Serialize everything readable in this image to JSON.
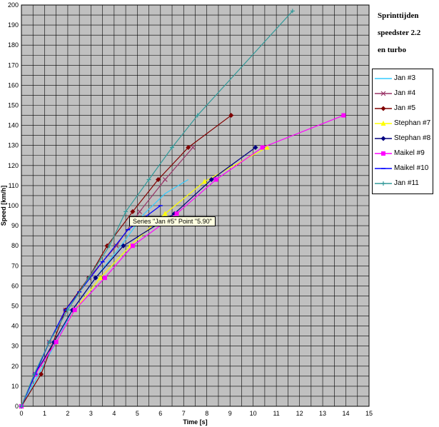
{
  "title_lines": [
    "Sprinttijden",
    "speedster 2.2",
    "en turbo"
  ],
  "tooltip": "Series \"Jan #5\" Point \"5.90\"",
  "chart_data": {
    "type": "line",
    "xlabel": "Time [s]",
    "ylabel": "Speed [km/h]",
    "xlim": [
      0,
      15
    ],
    "ylim": [
      0,
      200
    ],
    "x_ticks": [
      0,
      1,
      2,
      3,
      4,
      5,
      6,
      7,
      8,
      9,
      10,
      11,
      12,
      13,
      14,
      15
    ],
    "y_ticks": [
      0,
      10,
      20,
      30,
      40,
      50,
      60,
      70,
      80,
      90,
      100,
      110,
      120,
      130,
      140,
      150,
      160,
      170,
      180,
      190,
      200
    ],
    "grid": true,
    "legend_position": "right",
    "series": [
      {
        "name": "Jan #3",
        "color": "#33ccff",
        "marker": "none",
        "x": [
          0,
          1.5,
          2.2,
          3.2,
          4.3,
          5.3,
          6.2,
          7.2
        ],
        "y": [
          0,
          32,
          48,
          64,
          80,
          96,
          106,
          113
        ]
      },
      {
        "name": "Jan #4",
        "color": "#993366",
        "marker": "x",
        "x": [
          0,
          1.2,
          1.9,
          2.9,
          4.1,
          5.1,
          6.2,
          7.4
        ],
        "y": [
          0,
          32,
          48,
          64,
          80,
          97,
          113,
          129
        ]
      },
      {
        "name": "Jan #5",
        "color": "#800000",
        "marker": "diamond",
        "x": [
          0,
          0.85,
          1.9,
          2.9,
          3.7,
          4.8,
          5.9,
          7.2,
          9.05
        ],
        "y": [
          0,
          16,
          48,
          64,
          80,
          97,
          113,
          129,
          145
        ]
      },
      {
        "name": "Stephan #7",
        "color": "#ffff00",
        "marker": "triangle",
        "x": [
          0,
          0.6,
          1.5,
          2.3,
          3.4,
          4.7,
          6.2,
          7.9,
          10.6
        ],
        "y": [
          0,
          16,
          32,
          48,
          64,
          80,
          96,
          112,
          129
        ]
      },
      {
        "name": "Stephan #8",
        "color": "#000080",
        "marker": "diamond",
        "x": [
          0,
          0.6,
          1.4,
          2.2,
          3.2,
          4.4,
          6.6,
          8.2,
          10.1
        ],
        "y": [
          0,
          16,
          32,
          48,
          64,
          80,
          96,
          113,
          129
        ]
      },
      {
        "name": "Maikel #9",
        "color": "#ff00ff",
        "marker": "square",
        "x": [
          0,
          0.6,
          1.5,
          2.3,
          3.6,
          4.8,
          6.7,
          8.4,
          10.4,
          13.9
        ],
        "y": [
          0,
          16,
          32,
          48,
          64,
          80,
          96,
          113,
          129,
          145
        ]
      },
      {
        "name": "Maikel #10",
        "color": "#0000ff",
        "marker": "dash",
        "x": [
          0,
          0.6,
          1.2,
          1.9,
          2.5,
          3.5,
          4.6,
          6.0
        ],
        "y": [
          0,
          16,
          32,
          48,
          57,
          72,
          88,
          100
        ]
      },
      {
        "name": "Jan #11",
        "color": "#339999",
        "marker": "plus",
        "x": [
          0,
          0.55,
          1.2,
          2.0,
          2.9,
          3.8,
          4.5,
          5.5,
          6.5,
          7.6,
          11.7
        ],
        "y": [
          0,
          16,
          32,
          48,
          64,
          80,
          97,
          113,
          129,
          145,
          197
        ]
      }
    ]
  }
}
